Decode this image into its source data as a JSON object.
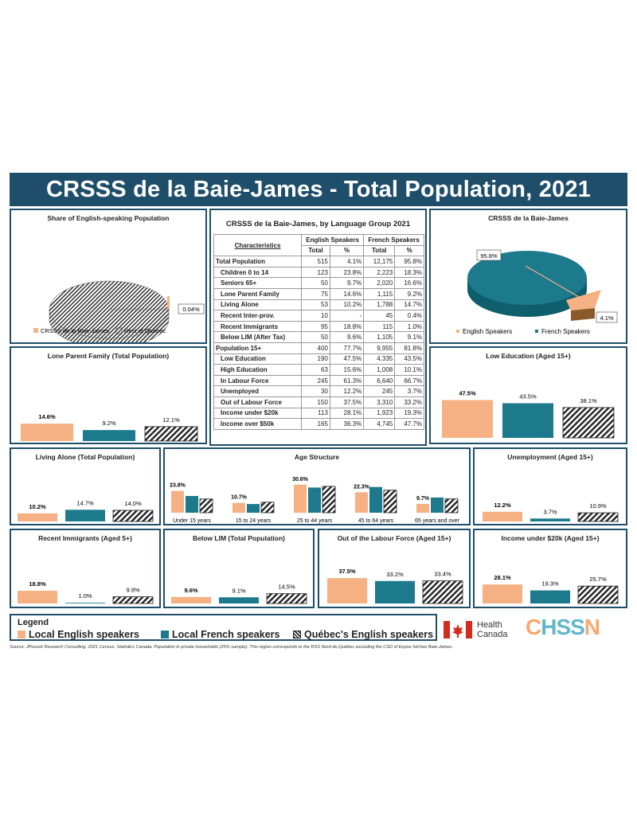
{
  "title": "CRSSS de la Baie-James - Total Population, 2021",
  "colors": {
    "english": "#f5b183",
    "french": "#1d7a8c",
    "quebec": "hatch",
    "navy": "#1f4e6b"
  },
  "table": {
    "title": "CRSSS de la Baie-James, by Language Group 2021",
    "col_char": "Characteristics",
    "col_eng": "English Speakers",
    "col_fr": "French Speakers",
    "col_total": "Total",
    "col_pct": "%",
    "rows": [
      {
        "label": "Total Population",
        "eng": "515",
        "eng_pct": "4.1%",
        "fr": "12,175",
        "fr_pct": "95.8%",
        "indent": false
      },
      {
        "label": "Children 0 to 14",
        "eng": "123",
        "eng_pct": "23.8%",
        "fr": "2,223",
        "fr_pct": "18.3%",
        "indent": true
      },
      {
        "label": "Seniors 65+",
        "eng": "50",
        "eng_pct": "9.7%",
        "fr": "2,020",
        "fr_pct": "16.6%",
        "indent": true
      },
      {
        "label": "Lone Parent Family",
        "eng": "75",
        "eng_pct": "14.6%",
        "fr": "1,115",
        "fr_pct": "9.2%",
        "indent": true
      },
      {
        "label": "Living Alone",
        "eng": "53",
        "eng_pct": "10.2%",
        "fr": "1,788",
        "fr_pct": "14.7%",
        "indent": true
      },
      {
        "label": "Recent Inter-prov.",
        "eng": "10",
        "eng_pct": "-",
        "fr": "45",
        "fr_pct": "0.4%",
        "indent": true
      },
      {
        "label": "Recent Immigrants",
        "eng": "95",
        "eng_pct": "18.8%",
        "fr": "115",
        "fr_pct": "1.0%",
        "indent": true
      },
      {
        "label": "Below LIM (After Tax)",
        "eng": "50",
        "eng_pct": "9.6%",
        "fr": "1,105",
        "fr_pct": "9.1%",
        "indent": true
      },
      {
        "label": "Population 15+",
        "eng": "400",
        "eng_pct": "77.7%",
        "fr": "9,955",
        "fr_pct": "81.8%",
        "indent": false
      },
      {
        "label": "Low Education",
        "eng": "190",
        "eng_pct": "47.5%",
        "fr": "4,335",
        "fr_pct": "43.5%",
        "indent": true
      },
      {
        "label": "High Education",
        "eng": "63",
        "eng_pct": "15.6%",
        "fr": "1,008",
        "fr_pct": "10.1%",
        "indent": true
      },
      {
        "label": "In Labour Force",
        "eng": "245",
        "eng_pct": "61.3%",
        "fr": "6,640",
        "fr_pct": "66.7%",
        "indent": true
      },
      {
        "label": "Unemployed",
        "eng": "30",
        "eng_pct": "12.2%",
        "fr": "245",
        "fr_pct": "3.7%",
        "indent": true
      },
      {
        "label": "Out of Labour Force",
        "eng": "150",
        "eng_pct": "37.5%",
        "fr": "3,310",
        "fr_pct": "33.2%",
        "indent": true
      },
      {
        "label": "Income under $20k",
        "eng": "113",
        "eng_pct": "28.1%",
        "fr": "1,923",
        "fr_pct": "19.3%",
        "indent": true
      },
      {
        "label": "Income over $50k",
        "eng": "165",
        "eng_pct": "36.3%",
        "fr": "4,745",
        "fr_pct": "47.7%",
        "indent": true
      }
    ]
  },
  "chart_data": [
    {
      "id": "share",
      "type": "pie",
      "title": "Share of English-speaking Population",
      "labels": [
        "CRSSS de la Baie-James",
        "Rest of Québec"
      ],
      "values": [
        0.04,
        99.96
      ],
      "data_label": "0.04%"
    },
    {
      "id": "lang",
      "type": "pie",
      "title": "CRSSS de la Baie-James",
      "labels": [
        "English Speakers",
        "French Speakers"
      ],
      "values": [
        4.1,
        95.8
      ],
      "data_labels": [
        "4.1%",
        "95.8%"
      ]
    },
    {
      "id": "lone",
      "type": "bar",
      "title": "Lone Parent Family (Total Population)",
      "values": [
        14.6,
        9.2,
        12.1
      ],
      "labels": [
        "14.6%",
        "9.2%",
        "12.1%"
      ]
    },
    {
      "id": "lowedu",
      "type": "bar",
      "title": "Low Education (Aged 15+)",
      "values": [
        47.5,
        43.5,
        38.1
      ],
      "labels": [
        "47.5%",
        "43.5%",
        "38.1%"
      ]
    },
    {
      "id": "alone",
      "type": "bar",
      "title": "Living Alone (Total Population)",
      "values": [
        10.2,
        14.7,
        14.0
      ],
      "labels": [
        "10.2%",
        "14.7%",
        "14.0%"
      ]
    },
    {
      "id": "age",
      "type": "bar",
      "title": "Age Structure",
      "categories": [
        "Under 15 years",
        "15 to 24 years",
        "25 to 44 years",
        "45 to 64 years",
        "65 years and over"
      ],
      "series": [
        {
          "values": [
            23.8,
            10.7,
            30.6,
            22.3,
            9.7
          ]
        },
        {
          "values": [
            18.3,
            9.5,
            27.5,
            28.1,
            16.6
          ]
        },
        {
          "values": [
            15.0,
            11.5,
            28.8,
            24.6,
            15.1
          ]
        }
      ],
      "labels": [
        "23.8%",
        "10.7%",
        "30.6%",
        "22.3%",
        "9.7%"
      ]
    },
    {
      "id": "unemp",
      "type": "bar",
      "title": "Unemployment (Aged 15+)",
      "values": [
        12.2,
        3.7,
        10.9
      ],
      "labels": [
        "12.2%",
        "3.7%",
        "10.9%"
      ]
    },
    {
      "id": "immig",
      "type": "bar",
      "title": "Recent Immigrants (Aged 5+)",
      "values": [
        18.8,
        1.0,
        9.9
      ],
      "labels": [
        "18.8%",
        "1.0%",
        "9.9%"
      ]
    },
    {
      "id": "lim",
      "type": "bar",
      "title": "Below LIM (Total Population)",
      "values": [
        9.6,
        9.1,
        14.5
      ],
      "labels": [
        "9.6%",
        "9.1%",
        "14.5%"
      ]
    },
    {
      "id": "outlf",
      "type": "bar",
      "title": "Out of the Labour Force (Aged 15+)",
      "values": [
        37.5,
        33.2,
        33.4
      ],
      "labels": [
        "37.5%",
        "33.2%",
        "33.4%"
      ]
    },
    {
      "id": "inc",
      "type": "bar",
      "title": "Income under $20k (Aged 15+)",
      "values": [
        28.1,
        19.3,
        25.7
      ],
      "labels": [
        "28.1%",
        "19.3%",
        "25.7%"
      ]
    }
  ],
  "legend": {
    "title": "Legend",
    "items": [
      "Local English speakers",
      "Local French speakers",
      "Québec's English speakers"
    ]
  },
  "source": "Source: JPocock Research Consulting. 2021 Census. Statistics Canada. Population in private households (25% sample). This region corresponds to the RSS Nord-du-Québec excluding the CSD of Eeyou Istchee Baie-James.",
  "logos": {
    "health": "Health",
    "canada": "Canada",
    "chssn": "CHSSN"
  }
}
